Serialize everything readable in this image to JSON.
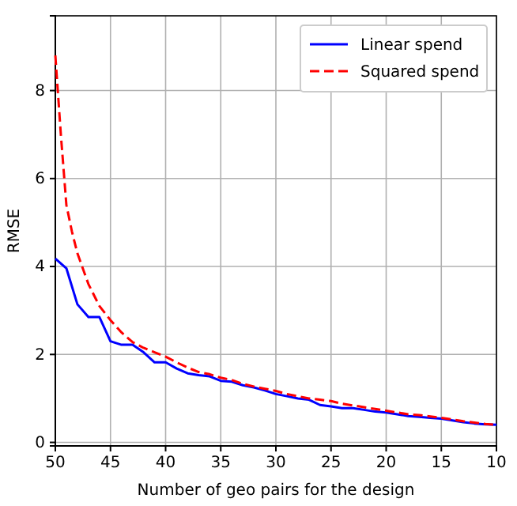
{
  "chart_data": {
    "type": "line",
    "xlabel": "Number of geo pairs for the design",
    "ylabel": "RMSE",
    "xlim": [
      50,
      10
    ],
    "ylim": [
      -0.08,
      9.7
    ],
    "xticks": [
      50,
      45,
      40,
      35,
      30,
      25,
      20,
      15,
      10
    ],
    "yticks": [
      0,
      2,
      4,
      6,
      8
    ],
    "grid": true,
    "legend": "top right",
    "series": [
      {
        "name": "Linear spend",
        "color": "#0000ff",
        "line_style": "solid",
        "x": [
          50,
          49,
          48,
          47,
          46,
          45,
          44,
          43,
          42,
          41,
          40,
          39,
          38,
          37,
          36,
          35,
          34,
          33,
          32,
          31,
          30,
          29,
          28,
          27,
          26,
          25,
          24,
          23,
          22,
          21,
          20,
          19,
          18,
          17,
          16,
          15,
          14,
          13,
          12,
          11,
          10
        ],
        "values": [
          4.18,
          3.96,
          3.14,
          2.85,
          2.85,
          2.3,
          2.22,
          2.22,
          2.05,
          1.82,
          1.82,
          1.68,
          1.57,
          1.53,
          1.5,
          1.4,
          1.38,
          1.3,
          1.25,
          1.18,
          1.1,
          1.05,
          1.0,
          0.97,
          0.85,
          0.82,
          0.78,
          0.78,
          0.74,
          0.7,
          0.68,
          0.64,
          0.6,
          0.58,
          0.56,
          0.54,
          0.5,
          0.46,
          0.43,
          0.41,
          0.4
        ]
      },
      {
        "name": "Squared spend",
        "color": "#ff0000",
        "line_style": "dashed",
        "x": [
          50,
          49.5,
          49,
          48.5,
          48,
          47,
          46,
          45,
          44,
          43,
          42,
          41,
          40,
          39,
          38,
          37,
          36,
          35,
          34,
          33,
          32,
          31,
          30,
          29,
          28,
          27,
          26,
          25,
          24,
          23,
          22,
          21,
          20,
          19,
          18,
          17,
          16,
          15,
          14,
          13,
          12,
          11,
          10
        ],
        "values": [
          8.8,
          7.0,
          5.4,
          4.8,
          4.3,
          3.6,
          3.1,
          2.78,
          2.5,
          2.28,
          2.15,
          2.05,
          1.95,
          1.82,
          1.7,
          1.6,
          1.55,
          1.47,
          1.42,
          1.33,
          1.27,
          1.22,
          1.17,
          1.1,
          1.05,
          1.0,
          0.97,
          0.94,
          0.88,
          0.84,
          0.8,
          0.76,
          0.72,
          0.68,
          0.64,
          0.62,
          0.59,
          0.56,
          0.52,
          0.48,
          0.45,
          0.42,
          0.4
        ]
      }
    ]
  }
}
